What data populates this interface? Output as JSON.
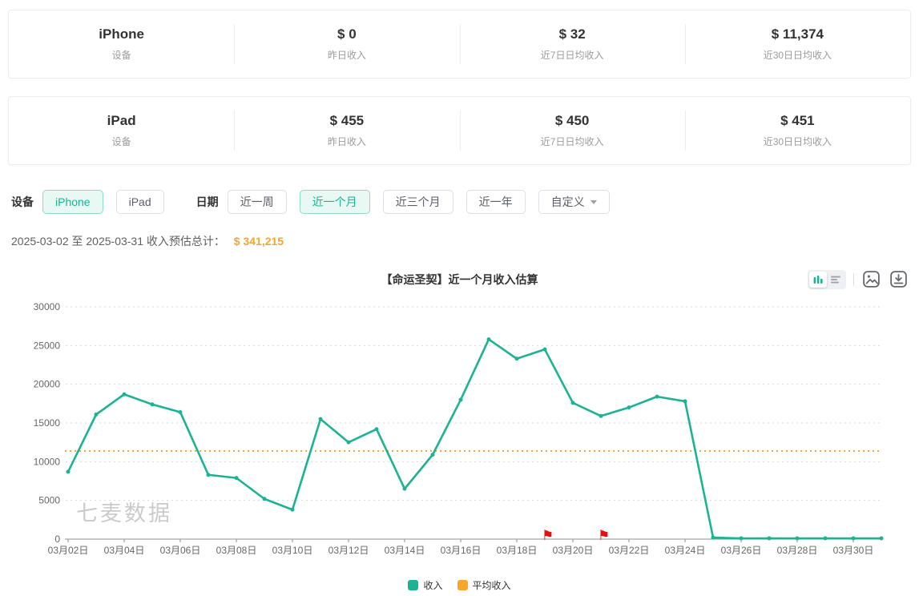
{
  "colors": {
    "accent": "#1cb394",
    "average": "#f7a52b",
    "flag": "#e60f0f",
    "grid": "#d9d9d9",
    "axis": "#8f8f8f",
    "tick_text": "#666666",
    "watermark": "#cbcbcb"
  },
  "cards": [
    {
      "stats": [
        {
          "value": "iPhone",
          "label": "设备"
        },
        {
          "value": "$ 0",
          "label": "昨日收入"
        },
        {
          "value": "$ 32",
          "label": "近7日日均收入"
        },
        {
          "value": "$ 11,374",
          "label": "近30日日均收入"
        }
      ]
    },
    {
      "stats": [
        {
          "value": "iPad",
          "label": "设备"
        },
        {
          "value": "$ 455",
          "label": "昨日收入"
        },
        {
          "value": "$ 450",
          "label": "近7日日均收入"
        },
        {
          "value": "$ 451",
          "label": "近30日日均收入"
        }
      ]
    }
  ],
  "filters": {
    "device_label": "设备",
    "device_options": [
      {
        "label": "iPhone",
        "active": true
      },
      {
        "label": "iPad",
        "active": false
      }
    ],
    "date_label": "日期",
    "date_options": [
      {
        "label": "近一周",
        "active": false
      },
      {
        "label": "近一个月",
        "active": true
      },
      {
        "label": "近三个月",
        "active": false
      },
      {
        "label": "近一年",
        "active": false
      }
    ],
    "custom_label": "自定义"
  },
  "summary": {
    "range": "2025-03-02 至 2025-03-31",
    "label": "收入预估总计：",
    "amount": "$ 341,215"
  },
  "chart_header": {
    "title": "【命运圣契】近一个月收入估算"
  },
  "legend": [
    {
      "label": "收入",
      "color": "#1cb394"
    },
    {
      "label": "平均收入",
      "color": "#f7a52b"
    }
  ],
  "chart_data": {
    "type": "line",
    "title": "【命运圣契】近一个月收入估算",
    "categories": [
      "03月02日",
      "03月03日",
      "03月04日",
      "03月05日",
      "03月06日",
      "03月07日",
      "03月08日",
      "03月09日",
      "03月10日",
      "03月11日",
      "03月12日",
      "03月13日",
      "03月14日",
      "03月15日",
      "03月16日",
      "03月17日",
      "03月18日",
      "03月19日",
      "03月20日",
      "03月21日",
      "03月22日",
      "03月23日",
      "03月24日",
      "03月25日",
      "03月26日",
      "03月27日",
      "03月28日",
      "03月29日",
      "03月30日",
      "03月31日"
    ],
    "series": [
      {
        "name": "收入",
        "type": "line",
        "color": "#1cb394",
        "values": [
          8700,
          16100,
          18700,
          17400,
          16400,
          8300,
          7900,
          5200,
          3800,
          15500,
          12500,
          14200,
          6500,
          10900,
          18000,
          25800,
          23300,
          24500,
          17600,
          15900,
          17000,
          18400,
          17800,
          200,
          100,
          100,
          100,
          100,
          100,
          100
        ]
      },
      {
        "name": "平均收入",
        "type": "average-line",
        "color": "#f7a52b",
        "value": 11374
      }
    ],
    "ylim": [
      0,
      30000
    ],
    "y_ticks": [
      0,
      5000,
      10000,
      15000,
      20000,
      25000,
      30000
    ],
    "x_label_interval": 2,
    "grid": "horizontal-dashed",
    "legend_position": "bottom",
    "flags": [
      {
        "category": "03月19日"
      },
      {
        "category": "03月21日"
      }
    ],
    "watermark": "七麦数据"
  }
}
